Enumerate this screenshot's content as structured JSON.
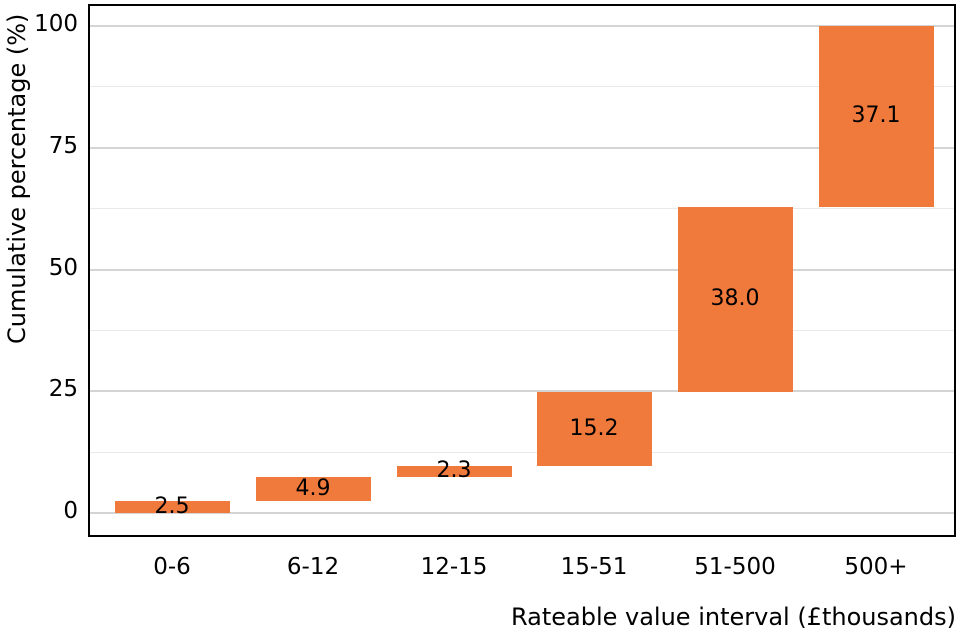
{
  "chart_data": {
    "type": "bar",
    "subtype": "waterfall",
    "title": "",
    "xlabel": "Rateable value interval (£thousands)",
    "ylabel": "Cumulative percentage (%)",
    "categories": [
      "0-6",
      "6-12",
      "12-15",
      "15-51",
      "51-500",
      "500+"
    ],
    "values": [
      2.5,
      4.9,
      2.3,
      15.2,
      38.0,
      37.1
    ],
    "cumulative_start": [
      0,
      2.5,
      7.4,
      9.7,
      24.9,
      62.9
    ],
    "cumulative_end": [
      2.5,
      7.4,
      9.7,
      24.9,
      62.9,
      100
    ],
    "bar_labels": [
      "2.5",
      "4.9",
      "2.3",
      "15.2",
      "38.0",
      "37.1"
    ],
    "ylim": [
      0,
      100
    ],
    "yticks": [
      0,
      25,
      50,
      75,
      100
    ],
    "ytick_labels": [
      "0",
      "25",
      "50",
      "75",
      "100"
    ],
    "minor_gridlines": [
      12.5,
      37.5,
      62.5,
      87.5
    ],
    "grid": "horizontal-only",
    "legend": "none",
    "colors": {
      "bar_fill": "#f0793c",
      "bar_label_text": "#000000",
      "major_gridline": "#d4d4d4",
      "minor_gridline": "#e9e9e9",
      "panel_border": "#000000",
      "background": "#ffffff",
      "axis_text": "#000000"
    }
  }
}
